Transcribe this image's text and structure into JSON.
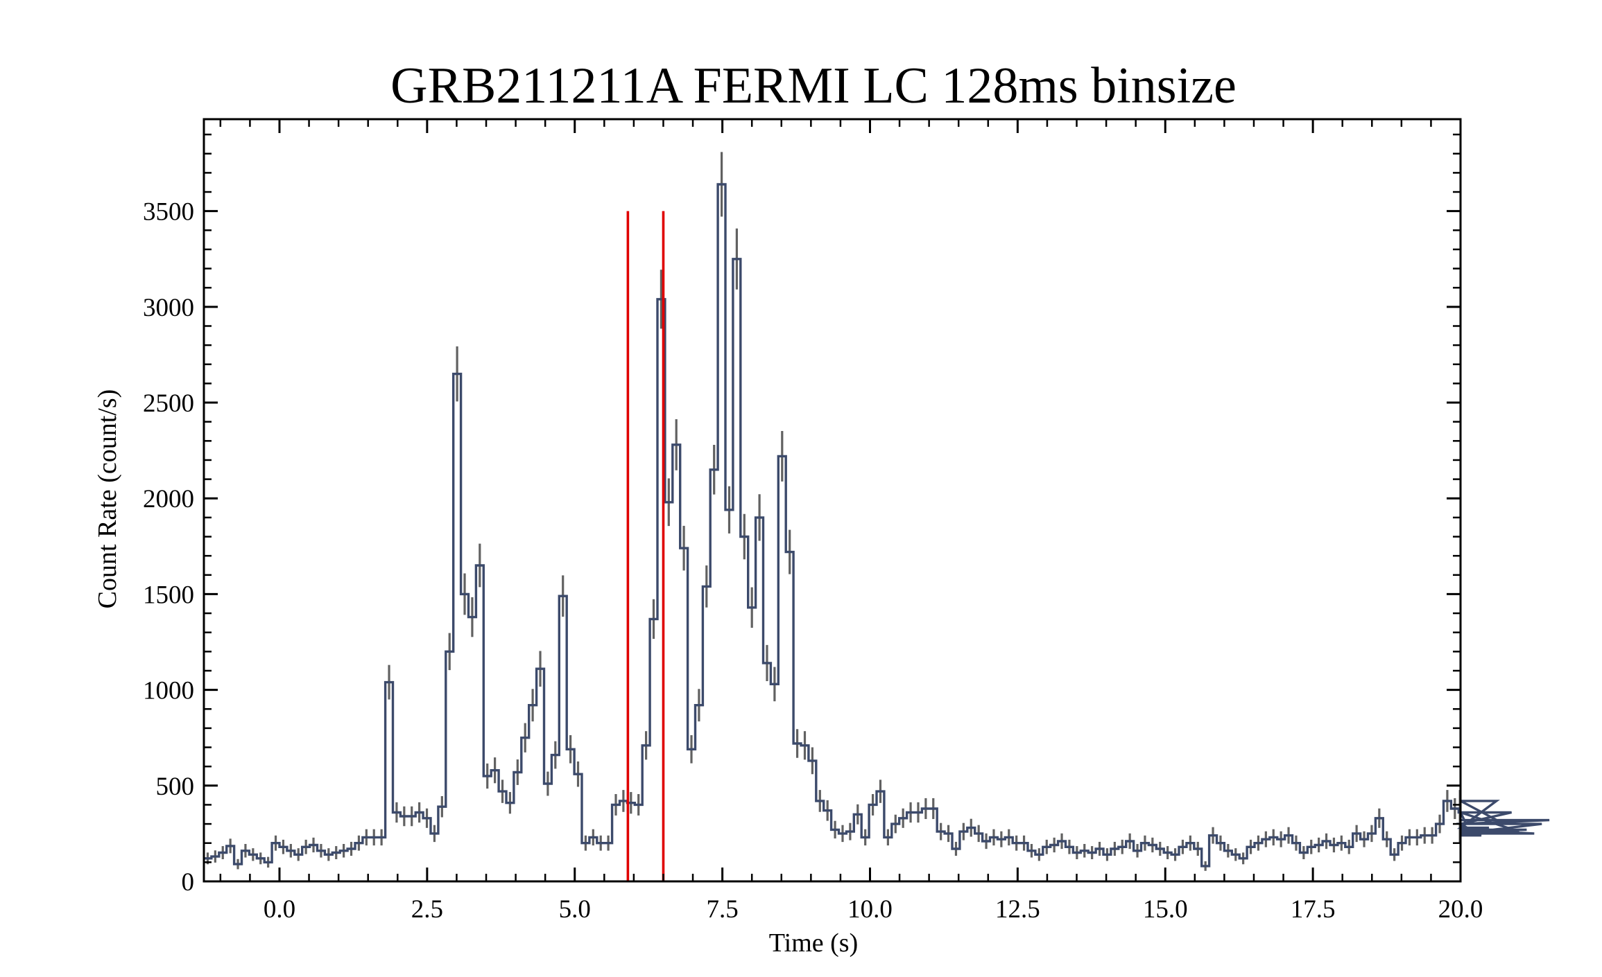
{
  "chart_data": {
    "type": "line",
    "subtype": "step-with-errorbars",
    "title": "GRB211211A FERMI LC 128ms binsize",
    "xlabel": "Time (s)",
    "ylabel": "Count Rate (count/s)",
    "xlim": [
      -1.28,
      20.0
    ],
    "ylim": [
      0,
      3980
    ],
    "x_ticks": [
      0.0,
      2.5,
      5.0,
      7.5,
      10.0,
      12.5,
      15.0,
      17.5,
      20.0
    ],
    "x_tick_labels": [
      "0.0",
      "2.5",
      "5.0",
      "7.5",
      "10.0",
      "12.5",
      "15.0",
      "17.5",
      "20.0"
    ],
    "y_ticks": [
      0,
      500,
      1000,
      1500,
      2000,
      2500,
      3000,
      3500
    ],
    "y_tick_labels": [
      "0",
      "500",
      "1000",
      "1500",
      "2000",
      "2500",
      "3000",
      "3500"
    ],
    "grid": false,
    "bin_width": 0.128,
    "bin_start": -1.28,
    "counts": [
      120,
      130,
      150,
      185,
      90,
      160,
      140,
      120,
      100,
      200,
      180,
      160,
      140,
      180,
      190,
      160,
      140,
      150,
      160,
      170,
      200,
      230,
      230,
      230,
      1040,
      360,
      340,
      340,
      360,
      330,
      250,
      390,
      1200,
      2650,
      1500,
      1380,
      1650,
      550,
      580,
      470,
      410,
      570,
      750,
      920,
      1110,
      510,
      660,
      1490,
      690,
      560,
      200,
      230,
      200,
      200,
      400,
      420,
      410,
      400,
      710,
      1370,
      3040,
      1980,
      2280,
      1740,
      690,
      920,
      1540,
      2150,
      3640,
      1940,
      3250,
      1800,
      1430,
      1900,
      1140,
      1030,
      2220,
      1720,
      720,
      710,
      630,
      420,
      370,
      270,
      250,
      260,
      350,
      230,
      400,
      470,
      230,
      300,
      330,
      360,
      360,
      380,
      380,
      260,
      250,
      170,
      260,
      280,
      250,
      210,
      230,
      220,
      230,
      200,
      200,
      160,
      140,
      180,
      190,
      210,
      180,
      150,
      160,
      150,
      170,
      140,
      170,
      180,
      210,
      160,
      200,
      190,
      170,
      150,
      140,
      180,
      200,
      170,
      80,
      240,
      200,
      160,
      140,
      120,
      180,
      200,
      220,
      230,
      220,
      240,
      200,
      150,
      180,
      190,
      210,
      190,
      200,
      180,
      250,
      220,
      250,
      330,
      220,
      140,
      200,
      230,
      230,
      240,
      240,
      300,
      420,
      380,
      360,
      300,
      260,
      240,
      280,
      420,
      300,
      360,
      260,
      270,
      250,
      300,
      320
    ],
    "red_vertical_lines": [
      {
        "x": 5.9,
        "y_top": 3500
      },
      {
        "x": 6.5,
        "y_top": 3500
      }
    ],
    "colors": {
      "line": "#3c4a6b",
      "errorbar": "#616161",
      "marker": "#e00000"
    }
  }
}
